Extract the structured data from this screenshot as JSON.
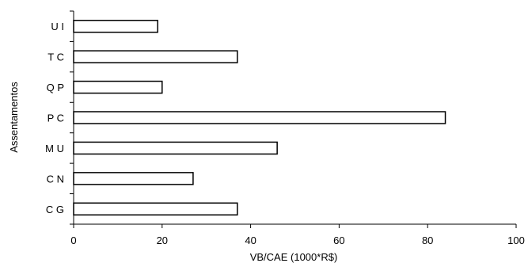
{
  "chart_data": {
    "type": "bar",
    "orientation": "horizontal",
    "categories": [
      "U I",
      "T C",
      "Q P",
      "P C",
      "M U",
      "C N",
      "C G"
    ],
    "values": [
      19,
      37,
      20,
      84,
      46,
      27,
      37
    ],
    "xlabel": "VB/CAE (1000*R$)",
    "ylabel": "Assentamentos",
    "xlim": [
      0,
      100
    ],
    "xticks": [
      0,
      20,
      40,
      60,
      80,
      100
    ],
    "grid": false,
    "legend": "none",
    "bar_fill": "#ffffff",
    "bar_stroke": "#000000"
  }
}
